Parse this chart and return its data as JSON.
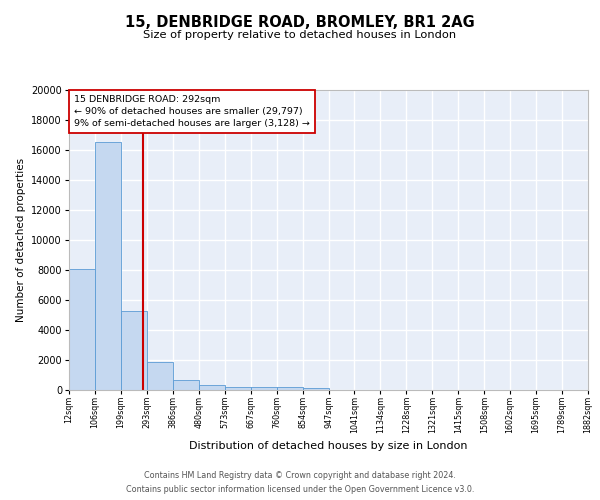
{
  "title": "15, DENBRIDGE ROAD, BROMLEY, BR1 2AG",
  "subtitle": "Size of property relative to detached houses in London",
  "xlabel": "Distribution of detached houses by size in London",
  "ylabel": "Number of detached properties",
  "bin_labels": [
    "12sqm",
    "106sqm",
    "199sqm",
    "293sqm",
    "386sqm",
    "480sqm",
    "573sqm",
    "667sqm",
    "760sqm",
    "854sqm",
    "947sqm",
    "1041sqm",
    "1134sqm",
    "1228sqm",
    "1321sqm",
    "1415sqm",
    "1508sqm",
    "1602sqm",
    "1695sqm",
    "1789sqm",
    "1882sqm"
  ],
  "bar_heights": [
    8100,
    16500,
    5300,
    1850,
    700,
    320,
    230,
    200,
    180,
    150,
    0,
    0,
    0,
    0,
    0,
    0,
    0,
    0,
    0,
    0
  ],
  "bar_color": "#c5d8f0",
  "bar_edge_color": "#5b9bd5",
  "property_line_x": 2.85,
  "property_line_color": "#cc0000",
  "annotation_text": "15 DENBRIDGE ROAD: 292sqm\n← 90% of detached houses are smaller (29,797)\n9% of semi-detached houses are larger (3,128) →",
  "annotation_box_color": "#ffffff",
  "annotation_box_edge_color": "#cc0000",
  "ylim": [
    0,
    20000
  ],
  "yticks": [
    0,
    2000,
    4000,
    6000,
    8000,
    10000,
    12000,
    14000,
    16000,
    18000,
    20000
  ],
  "background_color": "#e8eef8",
  "grid_color": "#ffffff",
  "fig_bg_color": "#ffffff",
  "footer_line1": "Contains HM Land Registry data © Crown copyright and database right 2024.",
  "footer_line2": "Contains public sector information licensed under the Open Government Licence v3.0."
}
